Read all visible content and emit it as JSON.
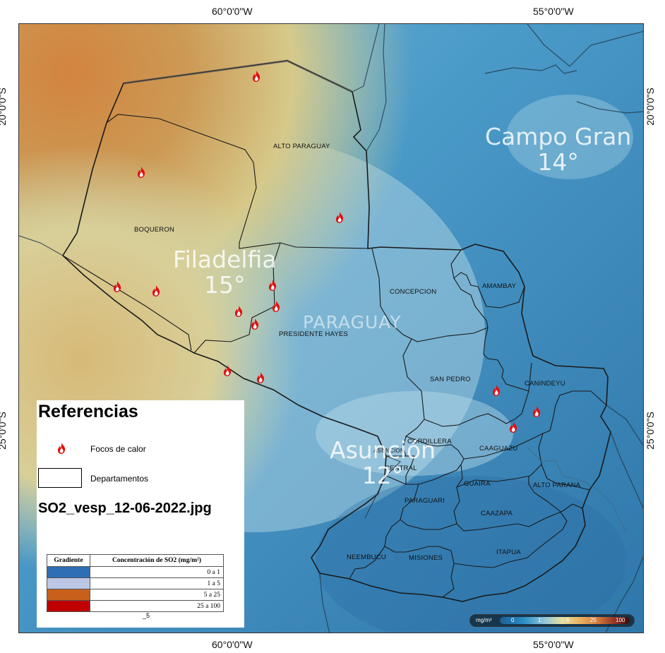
{
  "axes": {
    "top_ticks": [
      "60°0'0\"W",
      "55°0'0\"W"
    ],
    "bottom_ticks": [
      "60°0'0\"W",
      "55°0'0\"W"
    ],
    "left_ticks": [
      "20°0'0\"S",
      "25°0'0\"S"
    ],
    "right_ticks": [
      "20°0'0\"S",
      "25°0'0\"S"
    ]
  },
  "map": {
    "country_label": "PARAGUAY",
    "departments": [
      "ALTO PARAGUAY",
      "BOQUERON",
      "CONCEPCION",
      "AMAMBAY",
      "PRESIDENTE HAYES",
      "SAN PEDRO",
      "CANINDEYU",
      "CORDILLERA",
      "ASUNCION",
      "CENTRAL",
      "CAAGUAZU",
      "GUAIRA",
      "ALTO PARANA",
      "PARAGUARI",
      "CAAZAPA",
      "NEEMBUCU",
      "MISIONES",
      "ITAPUA"
    ],
    "cities": [
      {
        "name": "Filadelfia",
        "temp": "15°"
      },
      {
        "name": "Campo Gran",
        "temp": "14°"
      },
      {
        "name": "Asunción",
        "temp": "12°"
      }
    ],
    "fire_icon": "flame-icon",
    "fire_count": 15
  },
  "legend": {
    "title": "Referencias",
    "fire_label": "Focos de calor",
    "departments_label": "Departamentos",
    "file_name": "SO2_vesp_12-06-2022.jpg",
    "table_headers": [
      "Gradiente",
      "Concentración de SO2 (mg/m²)"
    ],
    "rows": [
      {
        "color": "#2f6db5",
        "range": "0 a 1"
      },
      {
        "color": "#bcc6e6",
        "range": "1 a 5"
      },
      {
        "color": "#c8601c",
        "range": "5 a 25"
      },
      {
        "color": "#c00000",
        "range": "25 a 100"
      }
    ],
    "stray_text": "_5"
  },
  "colorbar": {
    "unit": "mg/m²",
    "ticks": [
      "0",
      "1",
      "5",
      "25",
      "100"
    ]
  }
}
